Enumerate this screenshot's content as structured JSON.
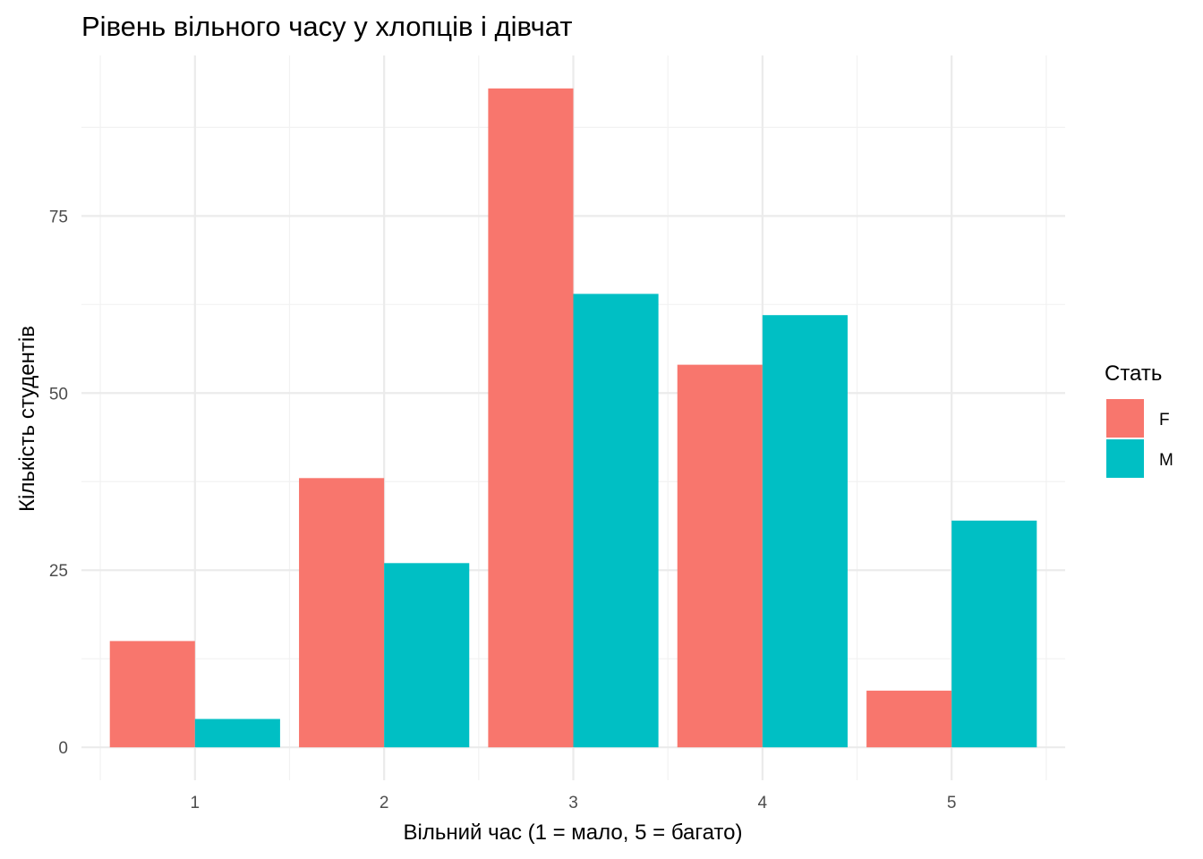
{
  "chart_data": {
    "type": "bar",
    "title": "Рівень вільного часу у хлопців і дівчат",
    "xlabel": "Вільний час (1 = мало, 5 = багато)",
    "ylabel": "Кількість студентів",
    "categories": [
      "1",
      "2",
      "3",
      "4",
      "5"
    ],
    "series": [
      {
        "name": "F",
        "color": "#F8766D",
        "values": [
          15,
          38,
          93,
          54,
          8
        ]
      },
      {
        "name": "M",
        "color": "#00BFC4",
        "values": [
          4,
          26,
          64,
          61,
          32
        ]
      }
    ],
    "ylim": [
      -4.65,
      97.65
    ],
    "yticks": [
      0,
      25,
      50,
      75
    ],
    "grid": true,
    "legend": {
      "title": "Стать",
      "position": "right"
    }
  }
}
